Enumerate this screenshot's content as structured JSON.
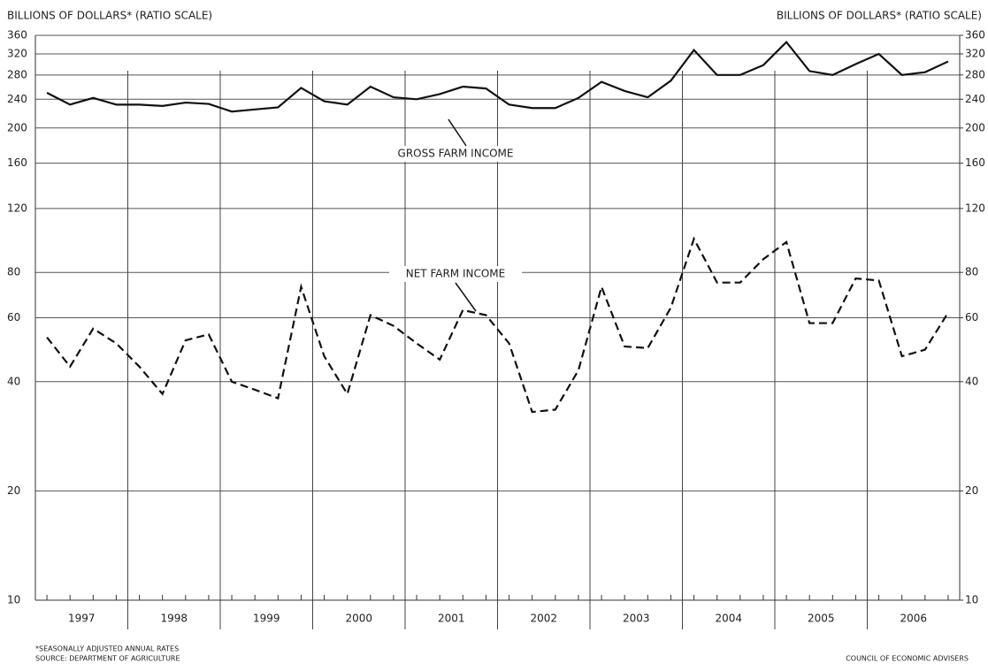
{
  "chart_data": {
    "type": "line",
    "ylabel": "BILLIONS OF DOLLARS* (RATIO SCALE)",
    "y2label": "BILLIONS OF DOLLARS* (RATIO SCALE)",
    "yscale": "log",
    "ylim": [
      10,
      360
    ],
    "yticks": [
      10,
      20,
      40,
      60,
      80,
      120,
      160,
      200,
      240,
      280,
      320,
      360
    ],
    "y2lim": [
      10,
      360
    ],
    "y2ticks": [
      10,
      20,
      40,
      60,
      80,
      120,
      160,
      200,
      240,
      280,
      320,
      360
    ],
    "grid": true,
    "year_groups": [
      "1997",
      "1998",
      "1999",
      "2000",
      "2001",
      "2002",
      "2003",
      "2004",
      "2005",
      "2006"
    ],
    "series": [
      {
        "name": "GROSS FARM INCOME",
        "color": "#111",
        "dash": "solid",
        "values": [
          250,
          232,
          242,
          232,
          232,
          230,
          235,
          233,
          222,
          225,
          228,
          258,
          237,
          232,
          260,
          243,
          240,
          248,
          260,
          257,
          232,
          227,
          227,
          242,
          268,
          253,
          243,
          270,
          328,
          280,
          280,
          298,
          345,
          287,
          280,
          300,
          320,
          280,
          285,
          305
        ]
      },
      {
        "name": "NET FARM INCOME",
        "color": "#111",
        "dash": "dashed",
        "values": [
          53,
          44,
          56,
          51,
          44,
          37,
          52,
          54,
          40,
          38,
          36,
          73,
          47,
          37,
          61,
          57,
          51,
          46,
          63,
          61,
          51,
          33,
          33.5,
          43,
          73,
          50,
          49.5,
          64,
          99,
          75,
          75,
          87,
          97,
          58,
          58,
          77,
          76,
          47,
          49,
          62
        ]
      }
    ],
    "footnote": "*SEASONALLY ADJUSTED ANNUAL RATES",
    "source": "SOURCE: DEPARTMENT OF AGRICULTURE",
    "credit": "COUNCIL OF ECONOMIC ADVISERS"
  }
}
